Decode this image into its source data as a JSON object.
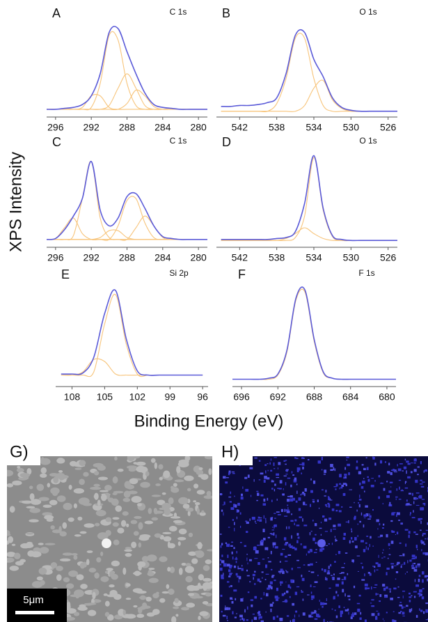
{
  "figure": {
    "y_label": "XPS Intensity",
    "x_label": "Binding Energy (eV)"
  },
  "chart_data": [
    {
      "type": "line",
      "label": "A",
      "annotation": "C 1s",
      "x": [
        297,
        296,
        295,
        294,
        293,
        292,
        291,
        290,
        289,
        288,
        287,
        286,
        285,
        284,
        283,
        282,
        281,
        280,
        279
      ],
      "xlim": [
        297,
        279
      ],
      "xticks": [
        296,
        292,
        288,
        284,
        280
      ],
      "ylim": [
        0,
        100
      ],
      "series": [
        {
          "color": "#f7c47a",
          "values": [
            8,
            8,
            8,
            8,
            10,
            22,
            22,
            10,
            8,
            8,
            8,
            8,
            8,
            8,
            8,
            8,
            8,
            8,
            8
          ]
        },
        {
          "color": "#f7c47a",
          "values": [
            8,
            8,
            8,
            8,
            8,
            10,
            35,
            85,
            80,
            35,
            12,
            8,
            8,
            8,
            8,
            8,
            8,
            8,
            8
          ]
        },
        {
          "color": "#f7c47a",
          "values": [
            8,
            8,
            8,
            8,
            8,
            8,
            8,
            12,
            30,
            45,
            30,
            12,
            8,
            8,
            8,
            8,
            8,
            8,
            8
          ]
        },
        {
          "color": "#f7c47a",
          "values": [
            8,
            8,
            8,
            8,
            8,
            8,
            8,
            8,
            8,
            14,
            28,
            22,
            11,
            8,
            8,
            8,
            8,
            8,
            8
          ]
        },
        {
          "color": "#5a5ad8",
          "values": [
            8,
            8,
            9,
            10,
            13,
            22,
            45,
            88,
            92,
            68,
            45,
            25,
            13,
            10,
            9,
            8,
            8,
            8,
            8
          ]
        }
      ]
    },
    {
      "type": "line",
      "label": "B",
      "annotation": "O 1s",
      "x": [
        544,
        543,
        542,
        541,
        540,
        539,
        538,
        537,
        536,
        535,
        534,
        533,
        532,
        531,
        530,
        529,
        528,
        527,
        526,
        525
      ],
      "xlim": [
        544.5,
        525
      ],
      "xticks": [
        542,
        538,
        534,
        530,
        526
      ],
      "ylim": [
        0,
        100
      ],
      "series": [
        {
          "color": "#f7c47a",
          "values": [
            6,
            6,
            6,
            6,
            6,
            6,
            14,
            40,
            82,
            82,
            40,
            12,
            6,
            6,
            6,
            6,
            6,
            6,
            6,
            6
          ]
        },
        {
          "color": "#f7c47a",
          "values": [
            6,
            6,
            6,
            6,
            6,
            6,
            6,
            6,
            6,
            12,
            30,
            38,
            18,
            9,
            6,
            6,
            6,
            6,
            6,
            6
          ]
        },
        {
          "color": "#5a5ad8",
          "values": [
            11,
            11,
            12,
            12,
            13,
            15,
            20,
            45,
            85,
            88,
            60,
            42,
            20,
            10,
            7,
            6,
            6,
            6,
            6,
            6
          ]
        }
      ]
    },
    {
      "type": "line",
      "label": "C",
      "annotation": "C 1s",
      "x": [
        297,
        296,
        295,
        294,
        293,
        292,
        291,
        290,
        289,
        288,
        287,
        286,
        285,
        284,
        283,
        282,
        281,
        280,
        279
      ],
      "xlim": [
        297,
        279
      ],
      "xticks": [
        296,
        292,
        288,
        284,
        280
      ],
      "ylim": [
        0,
        100
      ],
      "series": [
        {
          "color": "#f7c47a",
          "values": [
            8,
            9,
            20,
            30,
            14,
            8,
            8,
            8,
            8,
            8,
            8,
            8,
            8,
            8,
            8,
            8,
            8,
            8,
            8
          ]
        },
        {
          "color": "#f7c47a",
          "values": [
            8,
            8,
            8,
            12,
            50,
            88,
            30,
            10,
            8,
            8,
            8,
            8,
            8,
            8,
            8,
            8,
            8,
            8,
            8
          ]
        },
        {
          "color": "#f7c47a",
          "values": [
            8,
            8,
            8,
            8,
            8,
            8,
            10,
            17,
            17,
            10,
            8,
            8,
            8,
            8,
            8,
            8,
            8,
            8,
            8
          ]
        },
        {
          "color": "#f7c47a",
          "values": [
            8,
            8,
            8,
            8,
            8,
            8,
            8,
            8,
            22,
            48,
            50,
            25,
            10,
            8,
            8,
            8,
            8,
            8,
            8
          ]
        },
        {
          "color": "#f7c47a",
          "values": [
            8,
            8,
            8,
            8,
            8,
            8,
            8,
            8,
            8,
            8,
            20,
            32,
            22,
            10,
            8,
            8,
            8,
            8,
            8
          ]
        },
        {
          "color": "#5a5ad8",
          "values": [
            8,
            9,
            18,
            32,
            50,
            88,
            38,
            22,
            30,
            52,
            55,
            40,
            22,
            11,
            9,
            8,
            8,
            8,
            8
          ]
        }
      ]
    },
    {
      "type": "line",
      "label": "D",
      "annotation": "O 1s",
      "x": [
        544,
        543,
        542,
        541,
        540,
        539,
        538,
        537,
        536,
        535,
        534,
        533,
        532,
        531,
        530,
        529,
        528,
        527,
        526,
        525
      ],
      "xlim": [
        544.5,
        525
      ],
      "xticks": [
        542,
        538,
        534,
        530,
        526
      ],
      "ylim": [
        0,
        100
      ],
      "series": [
        {
          "color": "#f7c47a",
          "values": [
            7,
            7,
            7,
            7,
            7,
            7,
            7,
            7,
            10,
            32,
            92,
            38,
            11,
            7,
            7,
            7,
            7,
            7,
            7,
            7
          ]
        },
        {
          "color": "#f7c47a",
          "values": [
            7,
            7,
            7,
            7,
            7,
            7,
            7,
            9,
            14,
            20,
            14,
            9,
            7,
            7,
            7,
            7,
            7,
            7,
            7,
            7
          ]
        },
        {
          "color": "#5a5ad8",
          "values": [
            8,
            8,
            8,
            8,
            8,
            8,
            9,
            10,
            16,
            45,
            94,
            40,
            12,
            8,
            7,
            7,
            7,
            7,
            7,
            7
          ]
        }
      ]
    },
    {
      "type": "line",
      "label": "E",
      "annotation": "Si 2p",
      "x": [
        109,
        108,
        107,
        106,
        105,
        104,
        103,
        102,
        101,
        100,
        99,
        98,
        97,
        96
      ],
      "xlim": [
        109.5,
        95.5
      ],
      "xticks": [
        108,
        105,
        102,
        99,
        96
      ],
      "ylim": [
        0,
        100
      ],
      "series": [
        {
          "color": "#f7c47a",
          "values": [
            11,
            11,
            11,
            14,
            60,
            88,
            40,
            12,
            11,
            11,
            11,
            11,
            11,
            11
          ]
        },
        {
          "color": "#f7c47a",
          "values": [
            11,
            11,
            14,
            26,
            24,
            12,
            11,
            11,
            11,
            11,
            11,
            11,
            11,
            11
          ]
        },
        {
          "color": "#5a5ad8",
          "values": [
            12,
            12,
            13,
            28,
            70,
            92,
            45,
            15,
            11,
            11,
            11,
            11,
            11,
            11
          ]
        }
      ]
    },
    {
      "type": "line",
      "label": "F",
      "annotation": "F 1s",
      "x": [
        697,
        696,
        695,
        694,
        693,
        692,
        691,
        690,
        689,
        688,
        687,
        686,
        685,
        684,
        683,
        682,
        681,
        680,
        679
      ],
      "xlim": [
        697,
        679
      ],
      "xticks": [
        696,
        692,
        688,
        684,
        680
      ],
      "ylim": [
        0,
        100
      ],
      "series": [
        {
          "color": "#f7c47a",
          "values": [
            7,
            7,
            7,
            7,
            7,
            11,
            33,
            83,
            90,
            43,
            13,
            8,
            7,
            7,
            7,
            7,
            7,
            7,
            7
          ]
        },
        {
          "color": "#5a5ad8",
          "values": [
            7,
            7,
            7,
            7,
            8,
            12,
            35,
            85,
            92,
            45,
            14,
            8,
            7,
            7,
            7,
            7,
            7,
            7,
            7
          ]
        }
      ]
    }
  ],
  "images": {
    "g_label": "G)",
    "h_label": "H)",
    "scale_bar": "5μm"
  }
}
